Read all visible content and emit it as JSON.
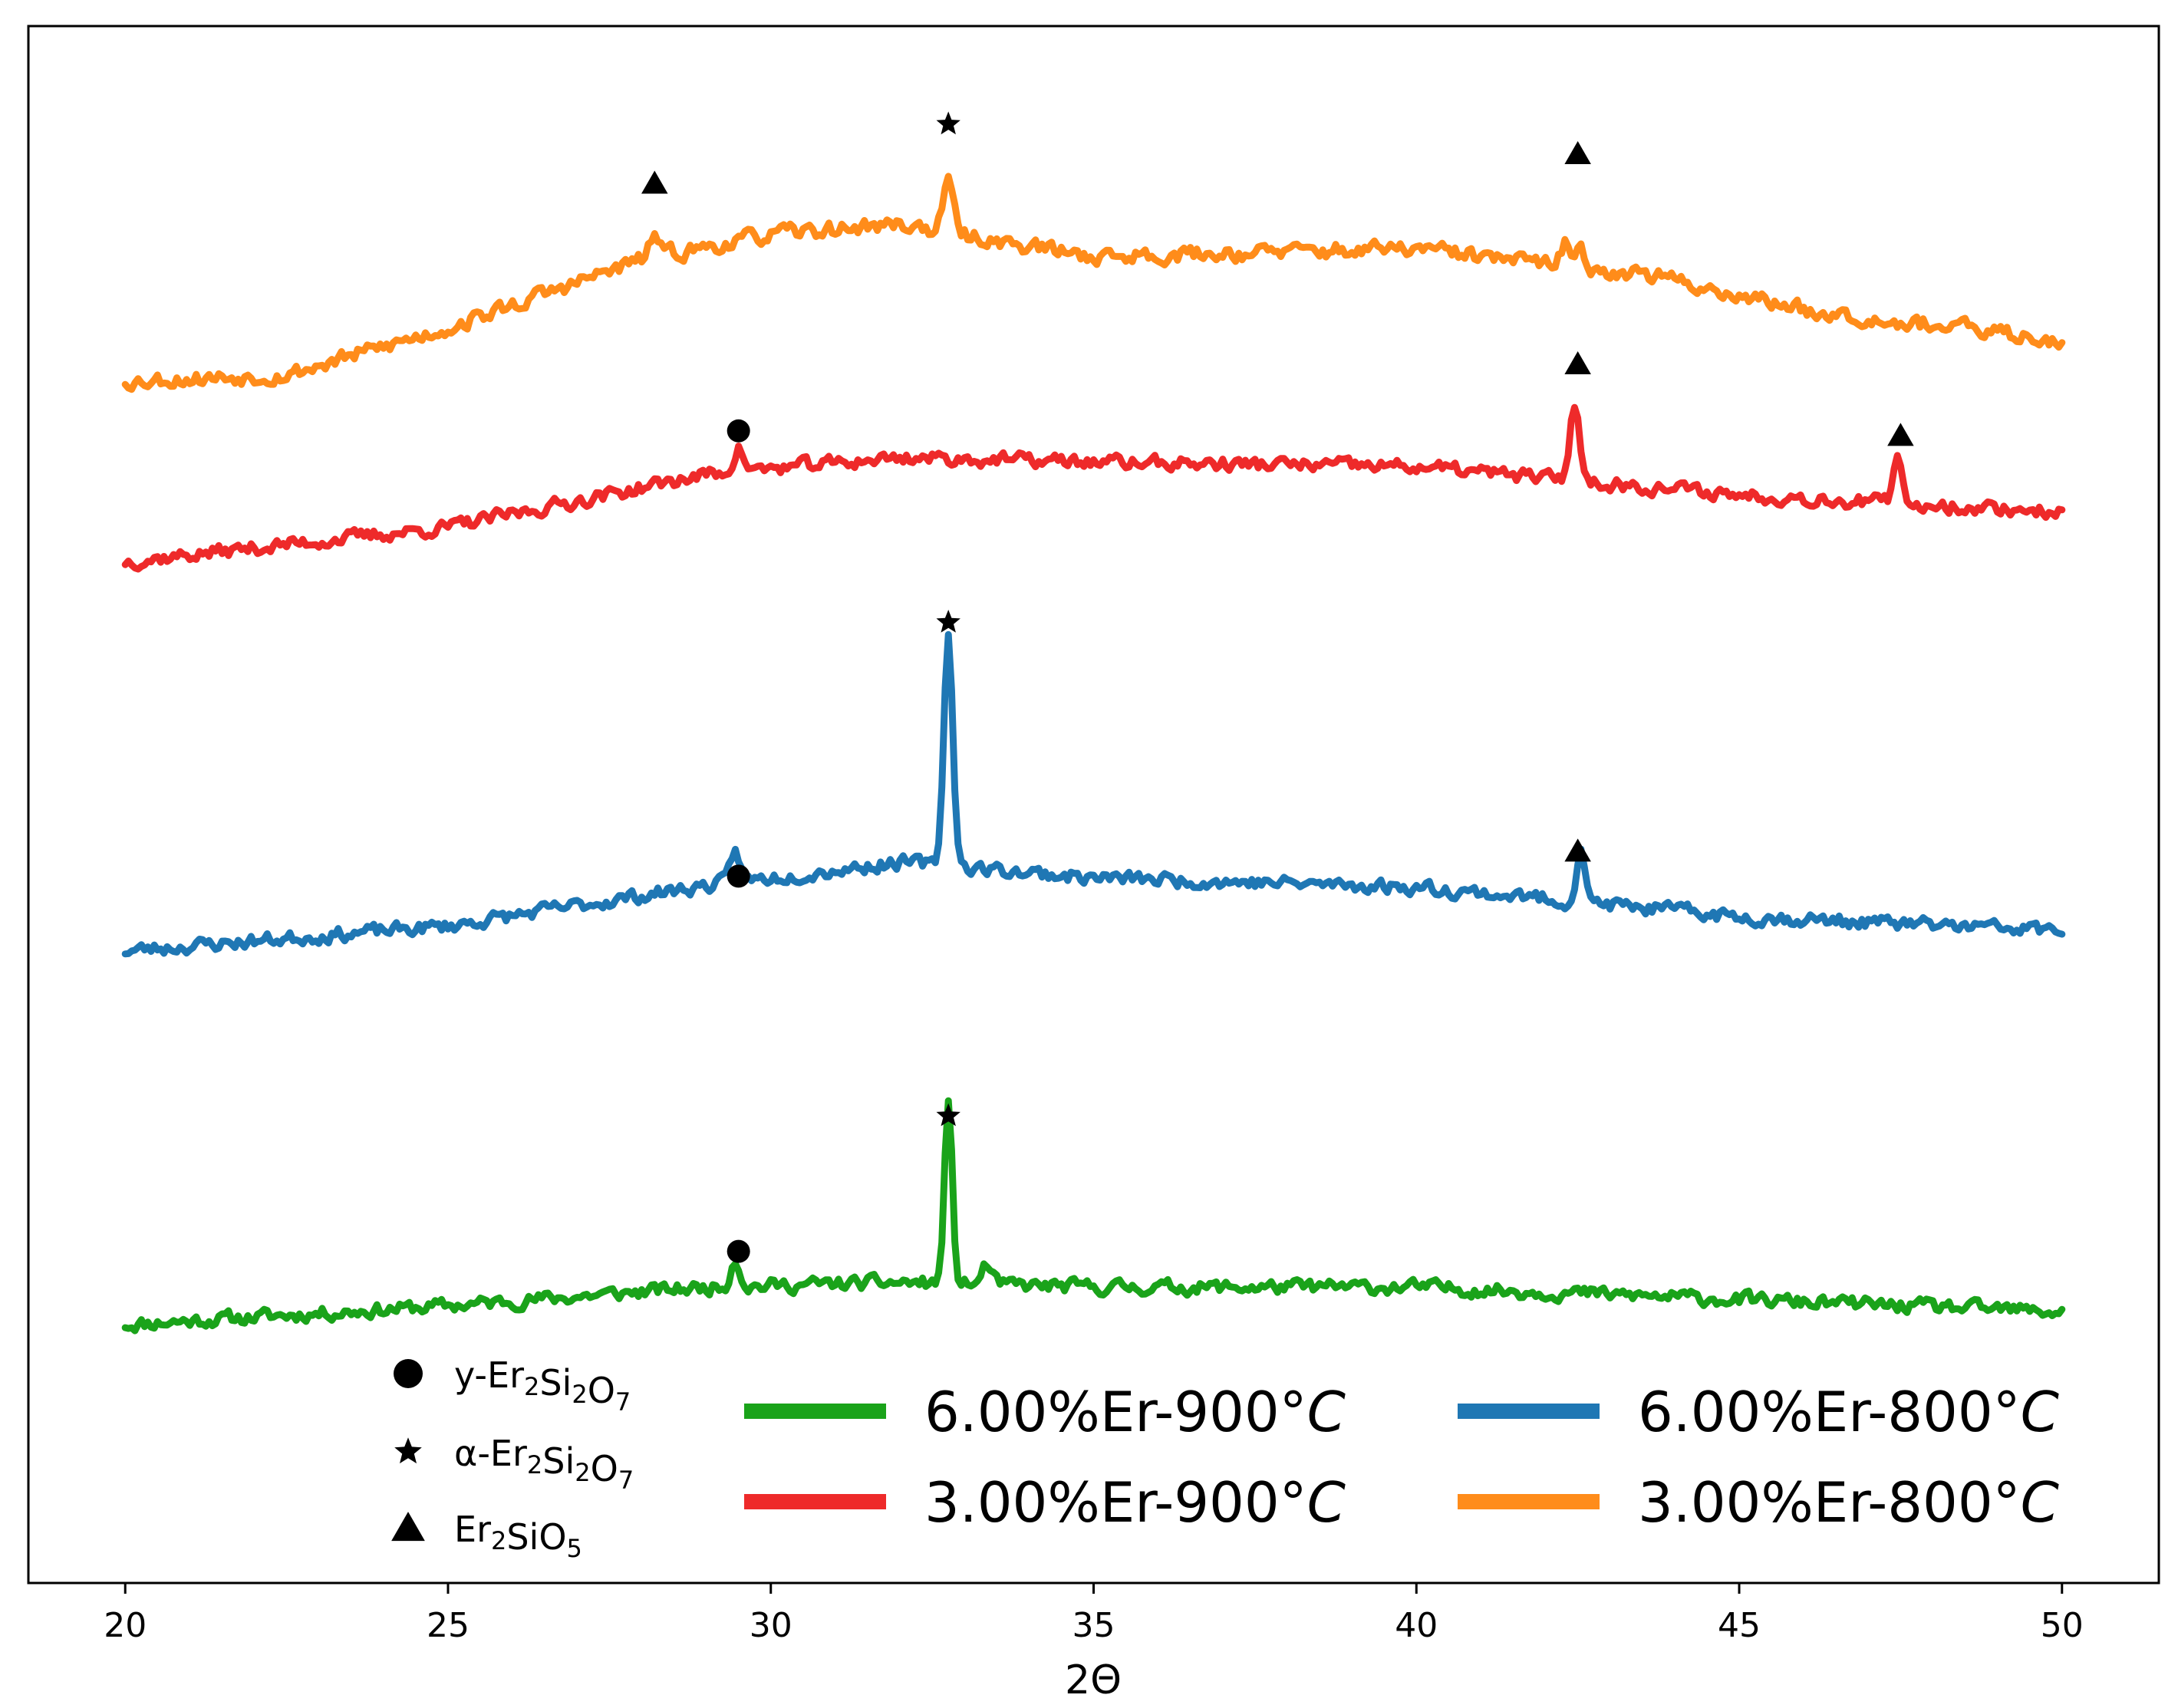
{
  "chart_data": {
    "type": "line",
    "title": "",
    "xlabel": "2Θ",
    "ylabel": "",
    "xlim": [
      18.5,
      51.5
    ],
    "ylim": [
      0,
      100
    ],
    "x_ticks": [
      20,
      25,
      30,
      35,
      40,
      45,
      50
    ],
    "x_tick_labels": [
      "20",
      "25",
      "30",
      "35",
      "40",
      "45",
      "50"
    ],
    "grid": false,
    "colors": {
      "green": "#1aa31a",
      "red": "#ee2a2a",
      "blue": "#1f77b4",
      "orange": "#ff8c1a"
    },
    "series": [
      {
        "name": "6.00%Er-900°C",
        "label_text": "6.00%Er-900",
        "label_unit": "°C",
        "color": "#1aa31a",
        "baseline": [
          [
            20,
            16.6
          ],
          [
            25,
            17.8
          ],
          [
            29,
            19.0
          ],
          [
            32,
            19.3
          ],
          [
            35,
            19.0
          ],
          [
            40,
            19.0
          ],
          [
            45,
            18.2
          ],
          [
            50,
            17.4
          ]
        ],
        "peaks": [
          {
            "x": 29.45,
            "height": 1.8,
            "width": 0.07
          },
          {
            "x": 32.75,
            "height": 11.5,
            "width": 0.06
          },
          {
            "x": 33.35,
            "height": 1.3,
            "width": 0.07
          }
        ],
        "noise": 0.7,
        "seed": 11
      },
      {
        "name": "6.00%Er-800°C",
        "label_text": "6.00%Er-800",
        "label_unit": "°C",
        "color": "#1f77b4",
        "baseline": [
          [
            20,
            40.6
          ],
          [
            25,
            42.2
          ],
          [
            29,
            44.8
          ],
          [
            32,
            46.3
          ],
          [
            35,
            45.3
          ],
          [
            40,
            44.7
          ],
          [
            45,
            42.8
          ],
          [
            50,
            41.9
          ]
        ],
        "peaks": [
          {
            "x": 29.45,
            "height": 2.0,
            "width": 0.07
          },
          {
            "x": 32.75,
            "height": 14.8,
            "width": 0.07
          },
          {
            "x": 42.55,
            "height": 3.7,
            "width": 0.06
          }
        ],
        "noise": 0.7,
        "seed": 23
      },
      {
        "name": "3.00%Er-900°C",
        "label_text": "3.00%Er-900",
        "label_unit": "°C",
        "color": "#ee2a2a",
        "baseline": [
          [
            20,
            65.6
          ],
          [
            25,
            67.8
          ],
          [
            29,
            71.2
          ],
          [
            32,
            72.3
          ],
          [
            35,
            72.0
          ],
          [
            40,
            71.7
          ],
          [
            45,
            69.9
          ],
          [
            50,
            68.8
          ]
        ],
        "peaks": [
          {
            "x": 29.5,
            "height": 1.5,
            "width": 0.08
          },
          {
            "x": 42.45,
            "height": 5.1,
            "width": 0.07
          },
          {
            "x": 47.45,
            "height": 2.8,
            "width": 0.06
          }
        ],
        "noise": 0.7,
        "seed": 37
      },
      {
        "name": "3.00%Er-800°C",
        "label_text": "3.00%Er-800",
        "label_unit": "°C",
        "color": "#ff8c1a",
        "baseline": [
          [
            20,
            77.2
          ],
          [
            22.5,
            77.6
          ],
          [
            25,
            80.6
          ],
          [
            28,
            85.0
          ],
          [
            30,
            86.6
          ],
          [
            32,
            87.3
          ],
          [
            33.5,
            86.2
          ],
          [
            35,
            85.2
          ],
          [
            40,
            85.7
          ],
          [
            42,
            84.7
          ],
          [
            43.5,
            84.1
          ],
          [
            46,
            81.8
          ],
          [
            50,
            79.8
          ]
        ],
        "peaks": [
          {
            "x": 28.2,
            "height": 1.5,
            "width": 0.07
          },
          {
            "x": 32.75,
            "height": 3.1,
            "width": 0.08
          },
          {
            "x": 42.3,
            "height": 1.5,
            "width": 0.06
          },
          {
            "x": 42.55,
            "height": 1.8,
            "width": 0.05
          }
        ],
        "noise": 0.8,
        "seed": 53
      }
    ],
    "annotations": [
      {
        "marker": "star",
        "x": 32.75,
        "y": 93.7
      },
      {
        "marker": "triangle",
        "x": 28.2,
        "y": 89.9
      },
      {
        "marker": "triangle",
        "x": 42.5,
        "y": 91.8
      },
      {
        "marker": "triangle",
        "x": 42.5,
        "y": 78.3
      },
      {
        "marker": "circle",
        "x": 29.5,
        "y": 74.0
      },
      {
        "marker": "triangle",
        "x": 47.5,
        "y": 73.7
      },
      {
        "marker": "star",
        "x": 32.75,
        "y": 61.7
      },
      {
        "marker": "circle",
        "x": 29.5,
        "y": 45.4
      },
      {
        "marker": "triangle",
        "x": 42.5,
        "y": 47.0
      },
      {
        "marker": "star",
        "x": 32.75,
        "y": 30.0
      },
      {
        "marker": "circle",
        "x": 29.5,
        "y": 21.3
      }
    ],
    "marker_legend": [
      {
        "marker": "circle",
        "prefix": "y-Er",
        "sub1": "2",
        "mid": "Si",
        "sub2": "2",
        "mid2": "O",
        "sub3": "7"
      },
      {
        "marker": "star",
        "prefix": "α-Er",
        "sub1": "2",
        "mid": "Si",
        "sub2": "2",
        "mid2": "O",
        "sub3": "7"
      },
      {
        "marker": "triangle",
        "prefix": "Er",
        "sub1": "2",
        "mid": "SiO",
        "sub2": "5",
        "mid2": "",
        "sub3": ""
      }
    ],
    "legend_position": "lower-right"
  }
}
